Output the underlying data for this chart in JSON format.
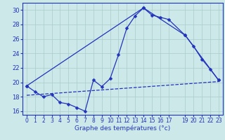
{
  "xlabel": "Graphe des températures (°c)",
  "background_color": "#cce8e8",
  "grid_color": "#aacccc",
  "line_color": "#2233bb",
  "xlim": [
    -0.5,
    23.5
  ],
  "ylim": [
    15.5,
    31.0
  ],
  "xticks": [
    0,
    1,
    2,
    3,
    4,
    5,
    6,
    7,
    8,
    9,
    10,
    11,
    12,
    13,
    14,
    15,
    16,
    17,
    19,
    20,
    21,
    22,
    23
  ],
  "yticks": [
    16,
    18,
    20,
    22,
    24,
    26,
    28,
    30
  ],
  "line1_x": [
    0,
    1,
    2,
    3,
    4,
    5,
    6,
    7,
    8,
    9,
    10,
    11,
    12,
    13,
    14,
    15,
    16,
    17,
    19,
    20,
    21,
    22,
    23
  ],
  "line1_y": [
    19.5,
    18.7,
    18.0,
    18.3,
    17.2,
    17.0,
    16.5,
    16.0,
    20.3,
    19.4,
    20.5,
    23.8,
    27.5,
    29.2,
    30.3,
    29.3,
    29.0,
    28.7,
    26.5,
    25.0,
    23.2,
    21.8,
    20.3
  ],
  "line2_x": [
    0,
    14,
    19,
    23
  ],
  "line2_y": [
    19.5,
    30.3,
    26.5,
    20.3
  ],
  "line3_x": [
    0,
    23
  ],
  "line3_y": [
    18.2,
    20.1
  ],
  "marker_size": 2.5,
  "linewidth": 0.9,
  "tick_fontsize": 5.5,
  "xlabel_fontsize": 6.5
}
